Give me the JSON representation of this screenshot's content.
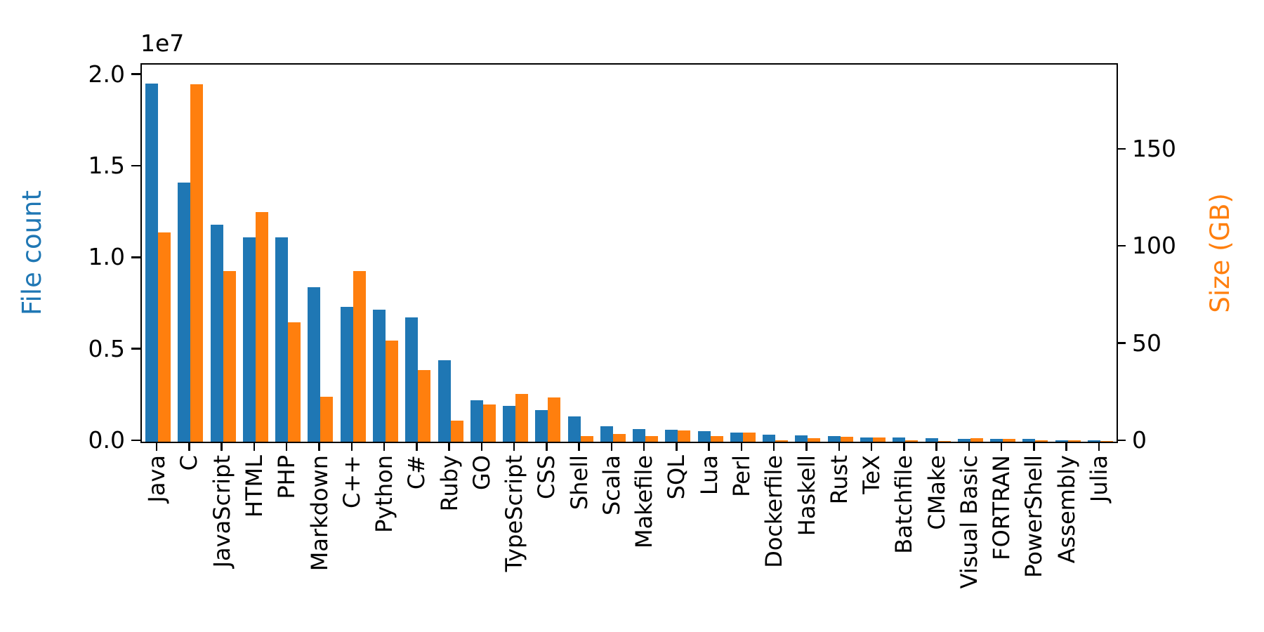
{
  "chart_data": {
    "type": "bar",
    "title": "",
    "description": "Grouped dual-axis bar chart of file count and size in GB per programming language",
    "categories": [
      "Java",
      "C",
      "JavaScript",
      "HTML",
      "PHP",
      "Markdown",
      "C++",
      "Python",
      "C#",
      "Ruby",
      "GO",
      "TypeScript",
      "CSS",
      "Shell",
      "Scala",
      "Makefile",
      "SQL",
      "Lua",
      "Perl",
      "Dockerfile",
      "Haskell",
      "Rust",
      "TeX",
      "Batchfile",
      "CMake",
      "Visual Basic",
      "FORTRAN",
      "PowerShell",
      "Assembly",
      "Julia"
    ],
    "series": [
      {
        "name": "File count",
        "axis": "left",
        "color": "#1f77b4",
        "values": [
          19550000,
          14140000,
          11840000,
          11180000,
          11180000,
          8460000,
          7380000,
          7230000,
          6810000,
          4470000,
          2270000,
          1940000,
          1730000,
          1390000,
          840000,
          680000,
          660000,
          580000,
          500000,
          370000,
          340000,
          320000,
          250000,
          240000,
          180000,
          160000,
          140000,
          140000,
          80000,
          60000
        ]
      },
      {
        "name": "Size (GB)",
        "axis": "right",
        "color": "#ff7f0e",
        "values": [
          107.7,
          183.8,
          87.8,
          118.1,
          61.4,
          23.1,
          87.7,
          52.0,
          36.8,
          11.0,
          19.3,
          24.6,
          22.7,
          3.0,
          3.9,
          2.9,
          5.7,
          2.8,
          4.7,
          0.7,
          1.9,
          2.7,
          2.2,
          0.7,
          0.5,
          1.9,
          1.6,
          0.7,
          0.8,
          0.3
        ]
      }
    ],
    "left_axis": {
      "label": "File count",
      "color": "#1f77b4",
      "min": 0,
      "max": 20600000,
      "offset_text": "1e7",
      "ticks": [
        {
          "label": "0.0",
          "value": 0
        },
        {
          "label": "0.5",
          "value": 5000000
        },
        {
          "label": "1.0",
          "value": 10000000
        },
        {
          "label": "1.5",
          "value": 15000000
        },
        {
          "label": "2.0",
          "value": 20000000
        }
      ]
    },
    "right_axis": {
      "label": "Size (GB)",
      "color": "#ff7f0e",
      "min": 0,
      "max": 194,
      "ticks": [
        {
          "label": "0",
          "value": 0
        },
        {
          "label": "50",
          "value": 50
        },
        {
          "label": "100",
          "value": 100
        },
        {
          "label": "150",
          "value": 150
        }
      ]
    },
    "x_axis": {
      "tick_label_rotation": 90
    },
    "legend": "none",
    "grid": false
  }
}
